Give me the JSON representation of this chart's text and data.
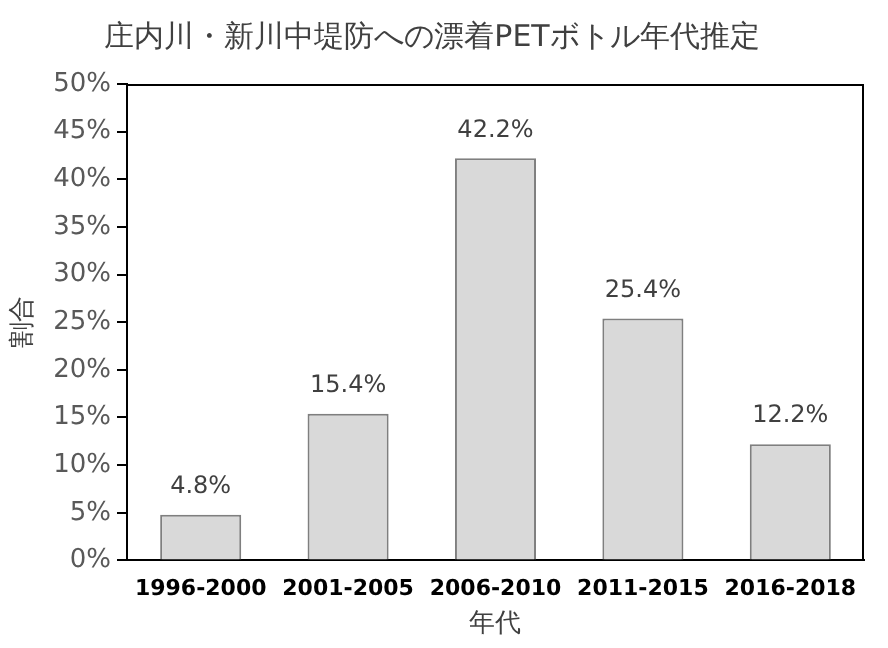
{
  "chart_data": {
    "type": "bar",
    "title": "庄内川・新川中堤防への漂着PETボトル年代推定",
    "xlabel": "年代",
    "ylabel": "割合",
    "categories": [
      "1996-2000",
      "2001-2005",
      "2006-2010",
      "2011-2015",
      "2016-2018"
    ],
    "values": [
      4.8,
      15.4,
      42.2,
      25.4,
      12.2
    ],
    "value_labels": [
      "4.8%",
      "15.4%",
      "42.2%",
      "25.4%",
      "12.2%"
    ],
    "color": "#d9d9d9",
    "ylim": [
      0,
      50
    ],
    "yticks": [
      {
        "value": 0,
        "label": "0%"
      },
      {
        "value": 5,
        "label": "5%"
      },
      {
        "value": 10,
        "label": "10%"
      },
      {
        "value": 15,
        "label": "15%"
      },
      {
        "value": 20,
        "label": "20%"
      },
      {
        "value": 25,
        "label": "25%"
      },
      {
        "value": 30,
        "label": "30%"
      },
      {
        "value": 35,
        "label": "35%"
      },
      {
        "value": 40,
        "label": "40%"
      },
      {
        "value": 45,
        "label": "45%"
      },
      {
        "value": 50,
        "label": "50%"
      }
    ],
    "grid": false,
    "legend": false
  }
}
